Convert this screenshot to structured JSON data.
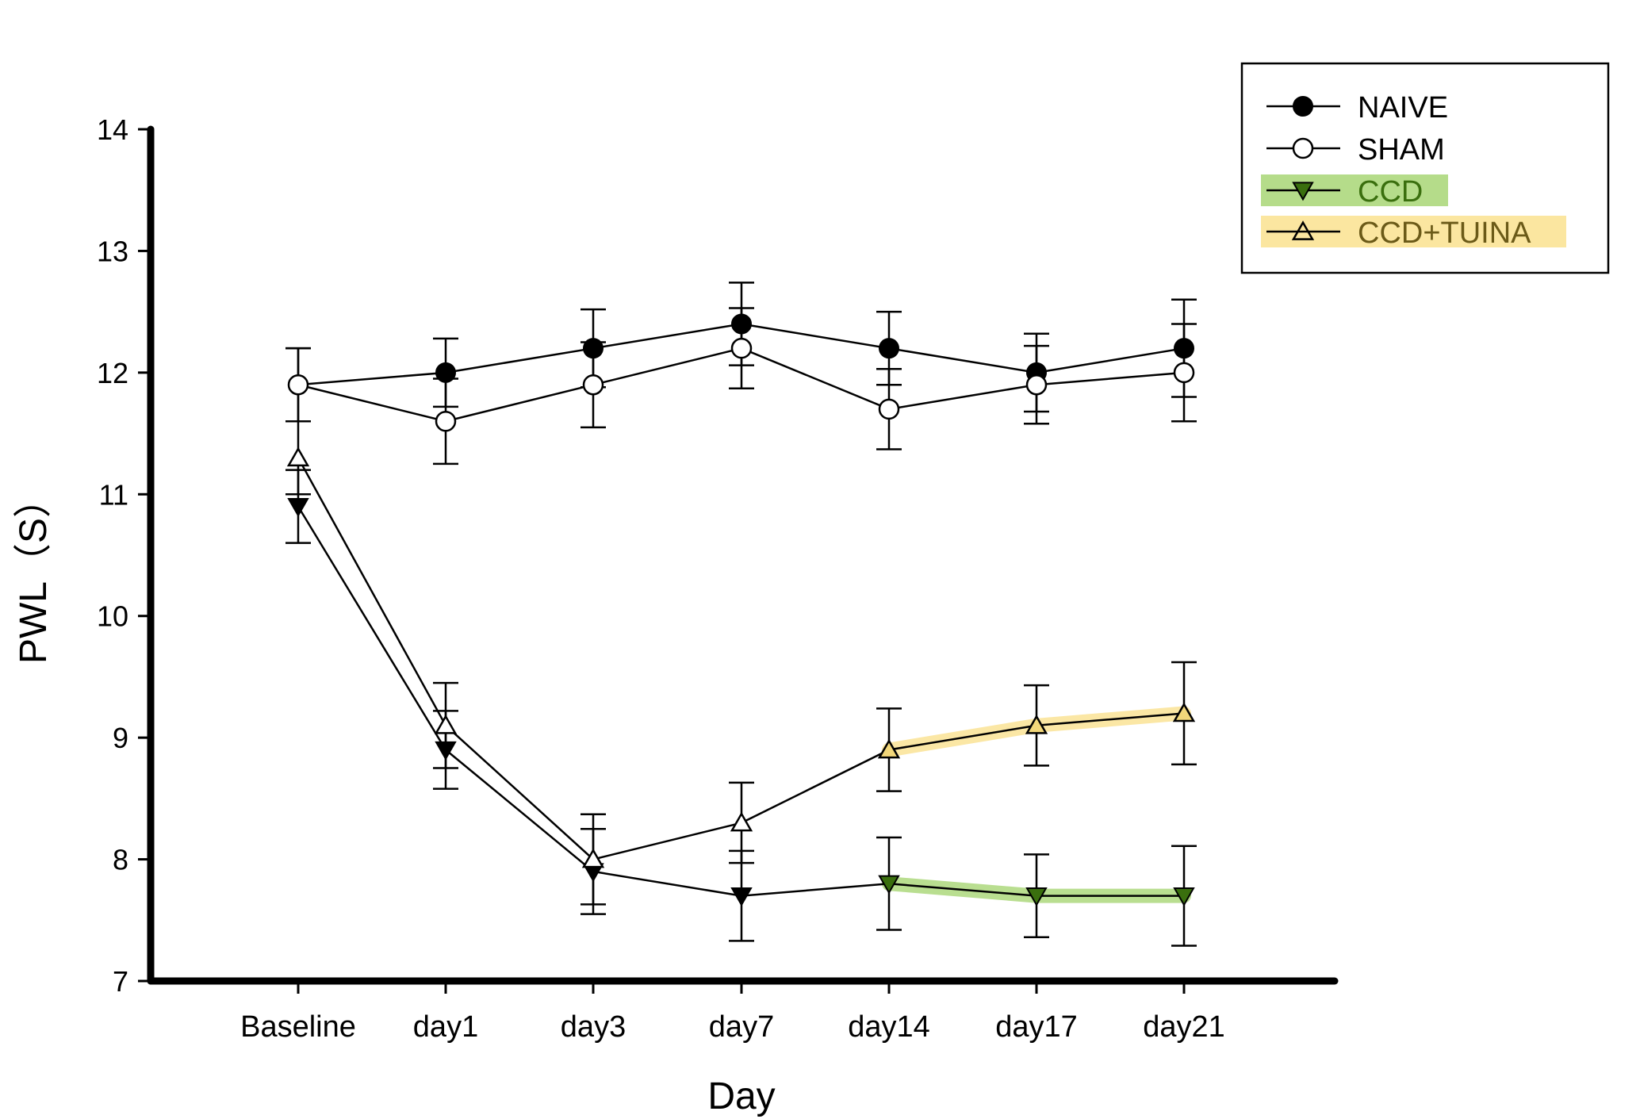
{
  "chart_data": {
    "type": "line",
    "title": "",
    "xlabel": "Day",
    "ylabel": "PWL（S）",
    "categories": [
      "Baseline",
      "day1",
      "day3",
      "day7",
      "day14",
      "day17",
      "day21"
    ],
    "ylim": [
      7,
      14
    ],
    "yticks": [
      "7",
      "8",
      "9",
      "10",
      "11",
      "12",
      "13",
      "14"
    ],
    "grid": false,
    "legend_position": "top-right",
    "series": [
      {
        "name": "NAIVE",
        "marker": "filled-circle",
        "values": [
          11.9,
          12.0,
          12.2,
          12.4,
          12.2,
          12.0,
          12.2
        ],
        "errors": [
          0.3,
          0.28,
          0.32,
          0.34,
          0.3,
          0.32,
          0.4
        ]
      },
      {
        "name": "SHAM",
        "marker": "open-circle",
        "values": [
          11.9,
          11.6,
          11.9,
          12.2,
          11.7,
          11.9,
          12.0
        ],
        "errors": [
          0.3,
          0.35,
          0.35,
          0.33,
          0.33,
          0.32,
          0.4
        ]
      },
      {
        "name": "CCD",
        "marker": "filled-down-triangle",
        "values": [
          10.9,
          8.9,
          7.9,
          7.7,
          7.8,
          7.7,
          7.7
        ],
        "errors": [
          0.3,
          0.32,
          0.35,
          0.37,
          0.38,
          0.34,
          0.41
        ],
        "highlight_color": "#b5dc8a",
        "highlight_from_index": 4
      },
      {
        "name": "CCD+TUINA",
        "marker": "open-up-triangle",
        "values": [
          11.3,
          9.1,
          8.0,
          8.3,
          8.9,
          9.1,
          9.2
        ],
        "errors": [
          0.3,
          0.35,
          0.37,
          0.33,
          0.34,
          0.33,
          0.42
        ],
        "highlight_color": "#fbe6a0",
        "highlight_from_index": 4
      }
    ],
    "legend_highlights": {
      "CCD": "#b5dc8a",
      "CCD+TUINA": "#fbe6a0"
    },
    "colors": {
      "axis": "#000000",
      "line": "#000000",
      "ccd_marker": "#3a6f0e",
      "ccd_text": "#3a6f0e",
      "tuina_marker": "#f2d77a",
      "tuina_text": "#6b5a18"
    }
  }
}
